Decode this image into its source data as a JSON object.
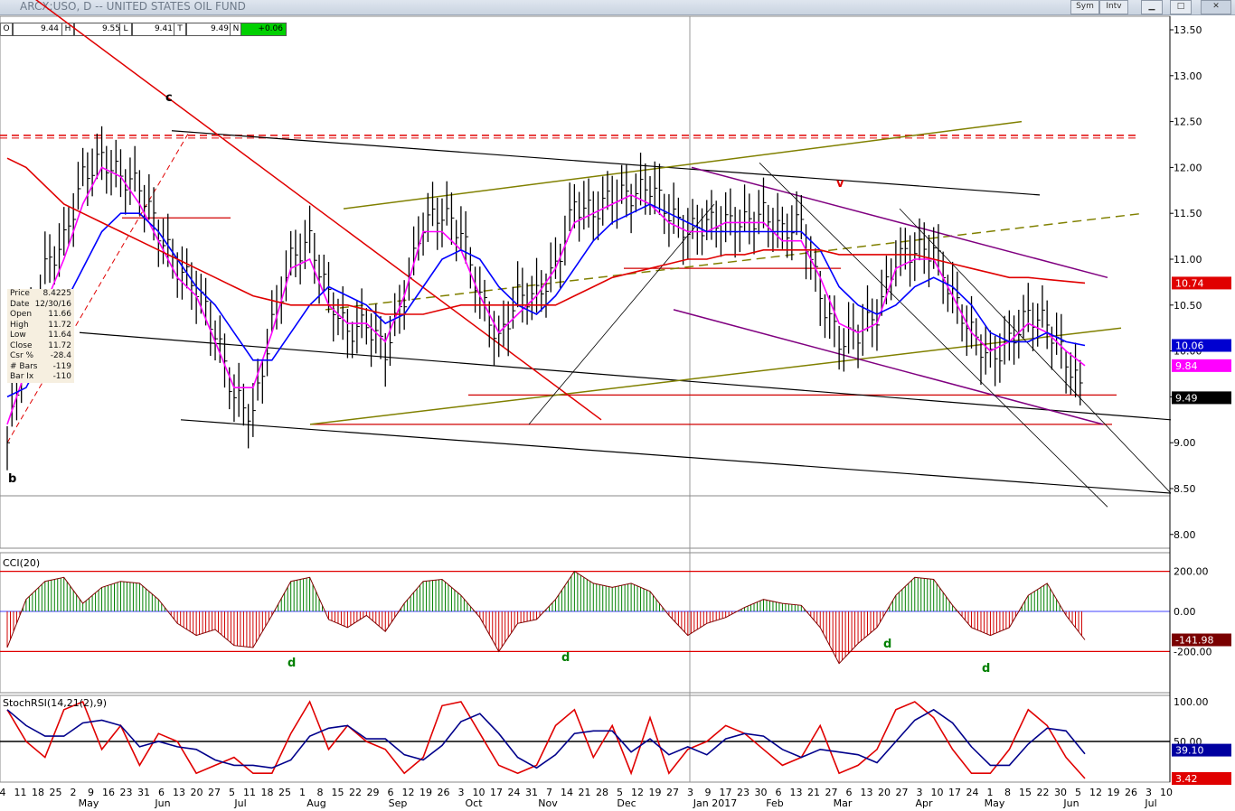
{
  "window": {
    "title": "ARCX:USO, D -- UNITED STATES OIL FUND",
    "buttons": {
      "sym": "Sym",
      "intv": "Intv"
    }
  },
  "ohlc": {
    "o_label": "O",
    "o": "9.44",
    "h_label": "H",
    "h": "9.55",
    "l_label": "L",
    "l": "9.41",
    "t_label": "T",
    "t": "9.49",
    "n_label": "N",
    "n": "+0.06"
  },
  "info_panel": [
    {
      "k": "Price",
      "v": "8.4225"
    },
    {
      "k": "Date",
      "v": "12/30/16"
    },
    {
      "k": "Open",
      "v": "11.66"
    },
    {
      "k": "High",
      "v": "11.72"
    },
    {
      "k": "Low",
      "v": "11.64"
    },
    {
      "k": "Close",
      "v": "11.72"
    },
    {
      "k": "Csr %",
      "v": "-28.4"
    },
    {
      "k": "# Bars",
      "v": "-119"
    },
    {
      "k": "Bar Ix",
      "v": "-110"
    }
  ],
  "annotations": [
    "c",
    "b",
    "v",
    "d",
    "d",
    "d",
    "d"
  ],
  "price_axis": {
    "ticks": [
      "13.50",
      "13.00",
      "12.50",
      "12.00",
      "11.50",
      "11.00",
      "10.50",
      "10.00",
      "9.50",
      "9.00",
      "8.50",
      "8.00"
    ],
    "badges": [
      {
        "text": "10.74",
        "color": "#e00000",
        "fg": "#ffffff",
        "value": 10.74
      },
      {
        "text": "10.06",
        "color": "#0000d0",
        "fg": "#ffffff",
        "value": 10.06
      },
      {
        "text": "9.84",
        "color": "#ff00ff",
        "fg": "#ffffff",
        "value": 9.84
      },
      {
        "text": "9.49",
        "color": "#000000",
        "fg": "#ffffff",
        "value": 9.49
      }
    ]
  },
  "cci_panel": {
    "title": "CCI(20)",
    "ticks": [
      "200.00",
      "0.00",
      "-200.00"
    ],
    "badge": {
      "text": "-141.98",
      "color": "#7a0000",
      "fg": "#ffffff",
      "value": -141.98
    }
  },
  "stoch_panel": {
    "title": "StochRSI(14,21(2),9)",
    "ticks": [
      "100.00",
      "50.00"
    ],
    "badges": [
      {
        "text": "39.10",
        "color": "#0000a0",
        "fg": "#ffffff",
        "value": 39.1
      },
      {
        "text": "3.42",
        "color": "#e00000",
        "fg": "#ffffff",
        "value": 3.42
      }
    ]
  },
  "x_axis": {
    "days": [
      "4",
      "11",
      "18",
      "25",
      "2",
      "9",
      "16",
      "23",
      "31",
      "6",
      "13",
      "20",
      "27",
      "5",
      "11",
      "18",
      "25",
      "1",
      "8",
      "15",
      "22",
      "29",
      "6",
      "12",
      "19",
      "26",
      "3",
      "10",
      "17",
      "24",
      "31",
      "7",
      "14",
      "21",
      "28",
      "5",
      "12",
      "19",
      "27",
      "3",
      "9",
      "17",
      "23",
      "30",
      "6",
      "13",
      "21",
      "27",
      "6",
      "13",
      "20",
      "27",
      "3",
      "10",
      "17",
      "24",
      "1",
      "8",
      "15",
      "22",
      "30",
      "5",
      "12",
      "19",
      "26",
      "3",
      "10"
    ],
    "months": [
      "May",
      "Jun",
      "Jul",
      "Aug",
      "Sep",
      "Oct",
      "Nov",
      "Dec",
      "Jan 2017",
      "Feb",
      "Mar",
      "Apr",
      "May",
      "Jun",
      "Jul"
    ]
  },
  "colors": {
    "bars": "#000000",
    "ma_fast": "#ff00ff",
    "ma_mid": "#0000ff",
    "ma_slow": "#e00000",
    "olive": "#808000",
    "purple": "#800080",
    "cci_pos": "#008000",
    "cci_neg": "#d00000"
  },
  "chart_data": {
    "type": "line",
    "title": "ARCX:USO, D -- UNITED STATES OIL FUND",
    "ylim": [
      7.9,
      13.6
    ],
    "x": [
      "May-04",
      "May-11",
      "May-18",
      "May-25",
      "Jun-01",
      "Jun-08",
      "Jun-15",
      "Jun-22",
      "Jun-29",
      "Jul-06",
      "Jul-13",
      "Jul-20",
      "Jul-27",
      "Aug-03",
      "Aug-10",
      "Aug-17",
      "Aug-24",
      "Aug-31",
      "Sep-07",
      "Sep-14",
      "Sep-21",
      "Sep-28",
      "Oct-05",
      "Oct-12",
      "Oct-19",
      "Oct-26",
      "Nov-02",
      "Nov-09",
      "Nov-16",
      "Nov-23",
      "Nov-30",
      "Dec-07",
      "Dec-14",
      "Dec-21",
      "Dec-28",
      "Jan-04",
      "Jan-11",
      "Jan-18",
      "Jan-25",
      "Feb-01",
      "Feb-08",
      "Feb-15",
      "Feb-22",
      "Mar-01",
      "Mar-08",
      "Mar-15",
      "Mar-22",
      "Mar-29",
      "Apr-05",
      "Apr-12",
      "Apr-19",
      "Apr-26",
      "May-03",
      "May-10",
      "May-17",
      "May-24",
      "May-31",
      "Jun-07"
    ],
    "series": [
      {
        "values": [
          9.0,
          10.1,
          10.9,
          11.2,
          11.9,
          12.1,
          11.9,
          11.8,
          11.3,
          10.9,
          10.7,
          10.2,
          9.5,
          9.3,
          10.3,
          11.0,
          11.2,
          10.6,
          10.2,
          10.3,
          10.0,
          10.6,
          11.4,
          11.5,
          11.3,
          10.6,
          10.1,
          10.6,
          10.6,
          10.9,
          11.6,
          11.5,
          11.7,
          11.7,
          11.8,
          11.5,
          11.3,
          11.4,
          11.4,
          11.4,
          11.5,
          11.3,
          11.4,
          10.6,
          10.1,
          10.2,
          10.4,
          11.0,
          11.1,
          11.1,
          10.6,
          10.2,
          9.9,
          10.1,
          10.4,
          10.3,
          9.9,
          9.49
        ]
      },
      {
        "values": [
          9.2,
          9.8,
          10.5,
          11.0,
          11.6,
          12.0,
          11.9,
          11.6,
          11.2,
          10.8,
          10.6,
          10.1,
          9.6,
          9.6,
          10.2,
          10.9,
          11.0,
          10.5,
          10.3,
          10.3,
          10.1,
          10.6,
          11.3,
          11.3,
          11.1,
          10.6,
          10.2,
          10.4,
          10.6,
          10.9,
          11.4,
          11.5,
          11.6,
          11.7,
          11.6,
          11.4,
          11.3,
          11.3,
          11.4,
          11.4,
          11.4,
          11.2,
          11.2,
          10.8,
          10.3,
          10.2,
          10.3,
          10.9,
          11.0,
          11.0,
          10.6,
          10.2,
          10.0,
          10.1,
          10.3,
          10.2,
          10.0,
          9.84
        ]
      },
      {
        "values": [
          9.5,
          9.6,
          10.0,
          10.5,
          10.9,
          11.3,
          11.5,
          11.5,
          11.3,
          11.0,
          10.7,
          10.5,
          10.2,
          9.9,
          9.9,
          10.2,
          10.5,
          10.7,
          10.6,
          10.5,
          10.3,
          10.4,
          10.7,
          11.0,
          11.1,
          11.0,
          10.7,
          10.5,
          10.4,
          10.6,
          10.9,
          11.2,
          11.4,
          11.5,
          11.6,
          11.5,
          11.4,
          11.3,
          11.3,
          11.3,
          11.3,
          11.3,
          11.3,
          11.1,
          10.7,
          10.5,
          10.4,
          10.5,
          10.7,
          10.8,
          10.7,
          10.5,
          10.2,
          10.1,
          10.1,
          10.2,
          10.1,
          10.06
        ]
      },
      {
        "values": [
          12.1,
          12.0,
          11.8,
          11.6,
          11.5,
          11.4,
          11.3,
          11.2,
          11.1,
          11.0,
          10.9,
          10.8,
          10.7,
          10.6,
          10.55,
          10.5,
          10.5,
          10.5,
          10.5,
          10.45,
          10.4,
          10.4,
          10.4,
          10.45,
          10.5,
          10.5,
          10.5,
          10.5,
          10.5,
          10.5,
          10.6,
          10.7,
          10.8,
          10.85,
          10.9,
          10.95,
          11.0,
          11.0,
          11.05,
          11.05,
          11.1,
          11.1,
          11.1,
          11.1,
          11.05,
          11.05,
          11.05,
          11.05,
          11.05,
          11.0,
          10.95,
          10.9,
          10.85,
          10.8,
          10.8,
          10.78,
          10.76,
          10.74
        ]
      }
    ],
    "cci": [
      -180,
      60,
      150,
      170,
      40,
      120,
      150,
      140,
      60,
      -60,
      -120,
      -90,
      -170,
      -180,
      -20,
      150,
      170,
      -40,
      -80,
      -20,
      -100,
      40,
      150,
      160,
      80,
      -30,
      -200,
      -60,
      -40,
      60,
      200,
      140,
      120,
      140,
      100,
      -20,
      -120,
      -60,
      -30,
      20,
      60,
      40,
      30,
      -80,
      -260,
      -160,
      -80,
      80,
      170,
      160,
      30,
      -80,
      -120,
      -80,
      80,
      140,
      -20,
      -141.98
    ],
    "stochrsi": [
      90,
      50,
      30,
      90,
      100,
      40,
      70,
      20,
      60,
      50,
      10,
      20,
      30,
      10,
      10,
      60,
      100,
      40,
      70,
      50,
      40,
      10,
      30,
      95,
      100,
      60,
      20,
      10,
      20,
      70,
      90,
      30,
      70,
      10,
      80,
      10,
      40,
      50,
      70,
      60,
      40,
      20,
      30,
      70,
      10,
      20,
      40,
      90,
      100,
      80,
      40,
      10,
      10,
      40,
      90,
      70,
      30,
      3.42
    ]
  }
}
